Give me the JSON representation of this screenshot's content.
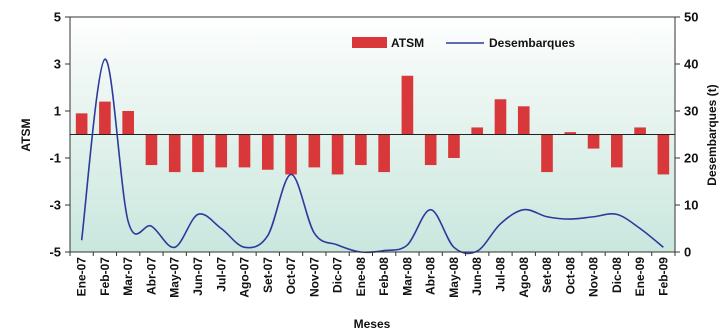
{
  "chart_data": {
    "type": "bar",
    "xlabel": "Meses",
    "ylabel_left": "ATSM",
    "ylabel_right": "Desembarques (t)",
    "categories": [
      "Ene-07",
      "Feb-07",
      "Mar-07",
      "Abr-07",
      "May-07",
      "Jun-07",
      "Jul-07",
      "Ago-07",
      "Set-07",
      "Oct-07",
      "Nov-07",
      "Dic-07",
      "Ene-08",
      "Feb-08",
      "Mar-08",
      "Abr-08",
      "May-08",
      "Jun-08",
      "Jul-08",
      "Ago-08",
      "Set-08",
      "Oct-08",
      "Nov-08",
      "Dic-08",
      "Ene-09",
      "Feb-09"
    ],
    "ylim_left": [
      -5,
      5
    ],
    "yticks_left": [
      5,
      3,
      1,
      -1,
      -3,
      -5
    ],
    "ylim_right": [
      0,
      50
    ],
    "yticks_right": [
      50,
      40,
      30,
      20,
      10,
      0
    ],
    "series": [
      {
        "name": "ATSM",
        "kind": "bar",
        "axis": "left",
        "color": "#d9383a",
        "values": [
          0.9,
          1.4,
          1.0,
          -1.3,
          -1.6,
          -1.6,
          -1.4,
          -1.4,
          -1.5,
          -1.7,
          -1.4,
          -1.7,
          -1.3,
          -1.6,
          2.5,
          -1.3,
          -1.0,
          0.3,
          1.5,
          1.2,
          -1.6,
          0.1,
          -0.6,
          -1.4,
          0.3,
          -1.7
        ]
      },
      {
        "name": "Desembarques",
        "kind": "line",
        "axis": "right",
        "color": "#2c3a9e",
        "values": [
          2.5,
          41.0,
          6.5,
          5.5,
          1.0,
          8.0,
          5.0,
          1.0,
          3.5,
          16.5,
          4.0,
          1.5,
          0.0,
          0.3,
          1.5,
          9.0,
          1.0,
          0.2,
          6.0,
          9.0,
          7.5,
          7.0,
          7.5,
          8.0,
          5.0,
          1.0
        ]
      }
    ],
    "legend_position": "top-right",
    "background_color": "#c9e7de"
  }
}
